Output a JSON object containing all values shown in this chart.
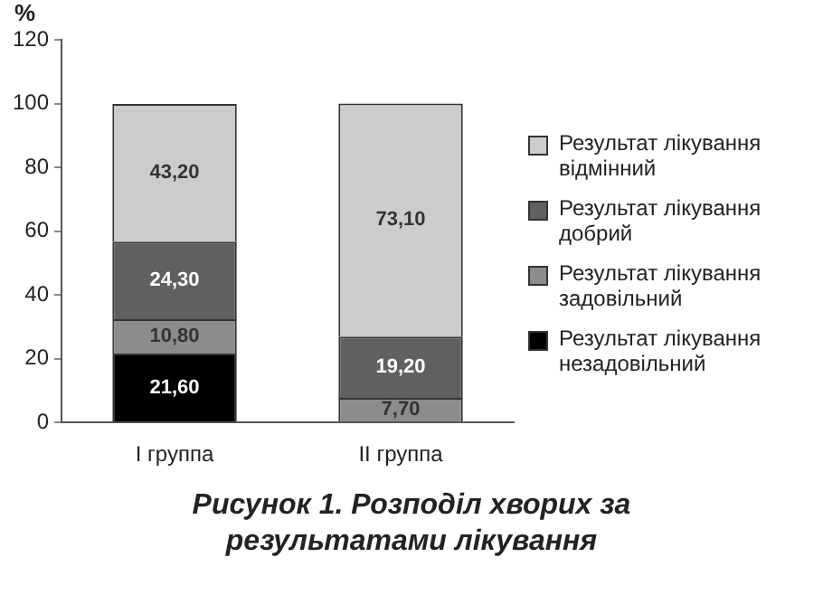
{
  "chart_data": {
    "type": "bar",
    "stacked": true,
    "title": "Рисунок 1. Розподіл хворих за результатами лікування",
    "ylabel": "%",
    "categories": [
      "I группа",
      "II группа"
    ],
    "series": [
      {
        "name": "Результат лікування незадовільний",
        "color": "#000000",
        "values": [
          21.6,
          0
        ],
        "value_labels": [
          "21,60",
          null
        ]
      },
      {
        "name": "Результат лікування задовільний",
        "color": "#8c8c8c",
        "values": [
          10.8,
          7.7
        ],
        "value_labels": [
          "10,80",
          "7,70"
        ]
      },
      {
        "name": "Результат лікування добрий",
        "color": "#606060",
        "values": [
          24.3,
          19.2
        ],
        "value_labels": [
          "24,30",
          "19,20"
        ]
      },
      {
        "name": "Результат лікування відмінний",
        "color": "#cccccc",
        "values": [
          43.2,
          73.1
        ],
        "value_labels": [
          "43,20",
          "73,10"
        ]
      }
    ],
    "ylim": [
      0,
      120
    ],
    "yticks": [
      0,
      20,
      40,
      60,
      80,
      100,
      120
    ],
    "legend": "right"
  }
}
